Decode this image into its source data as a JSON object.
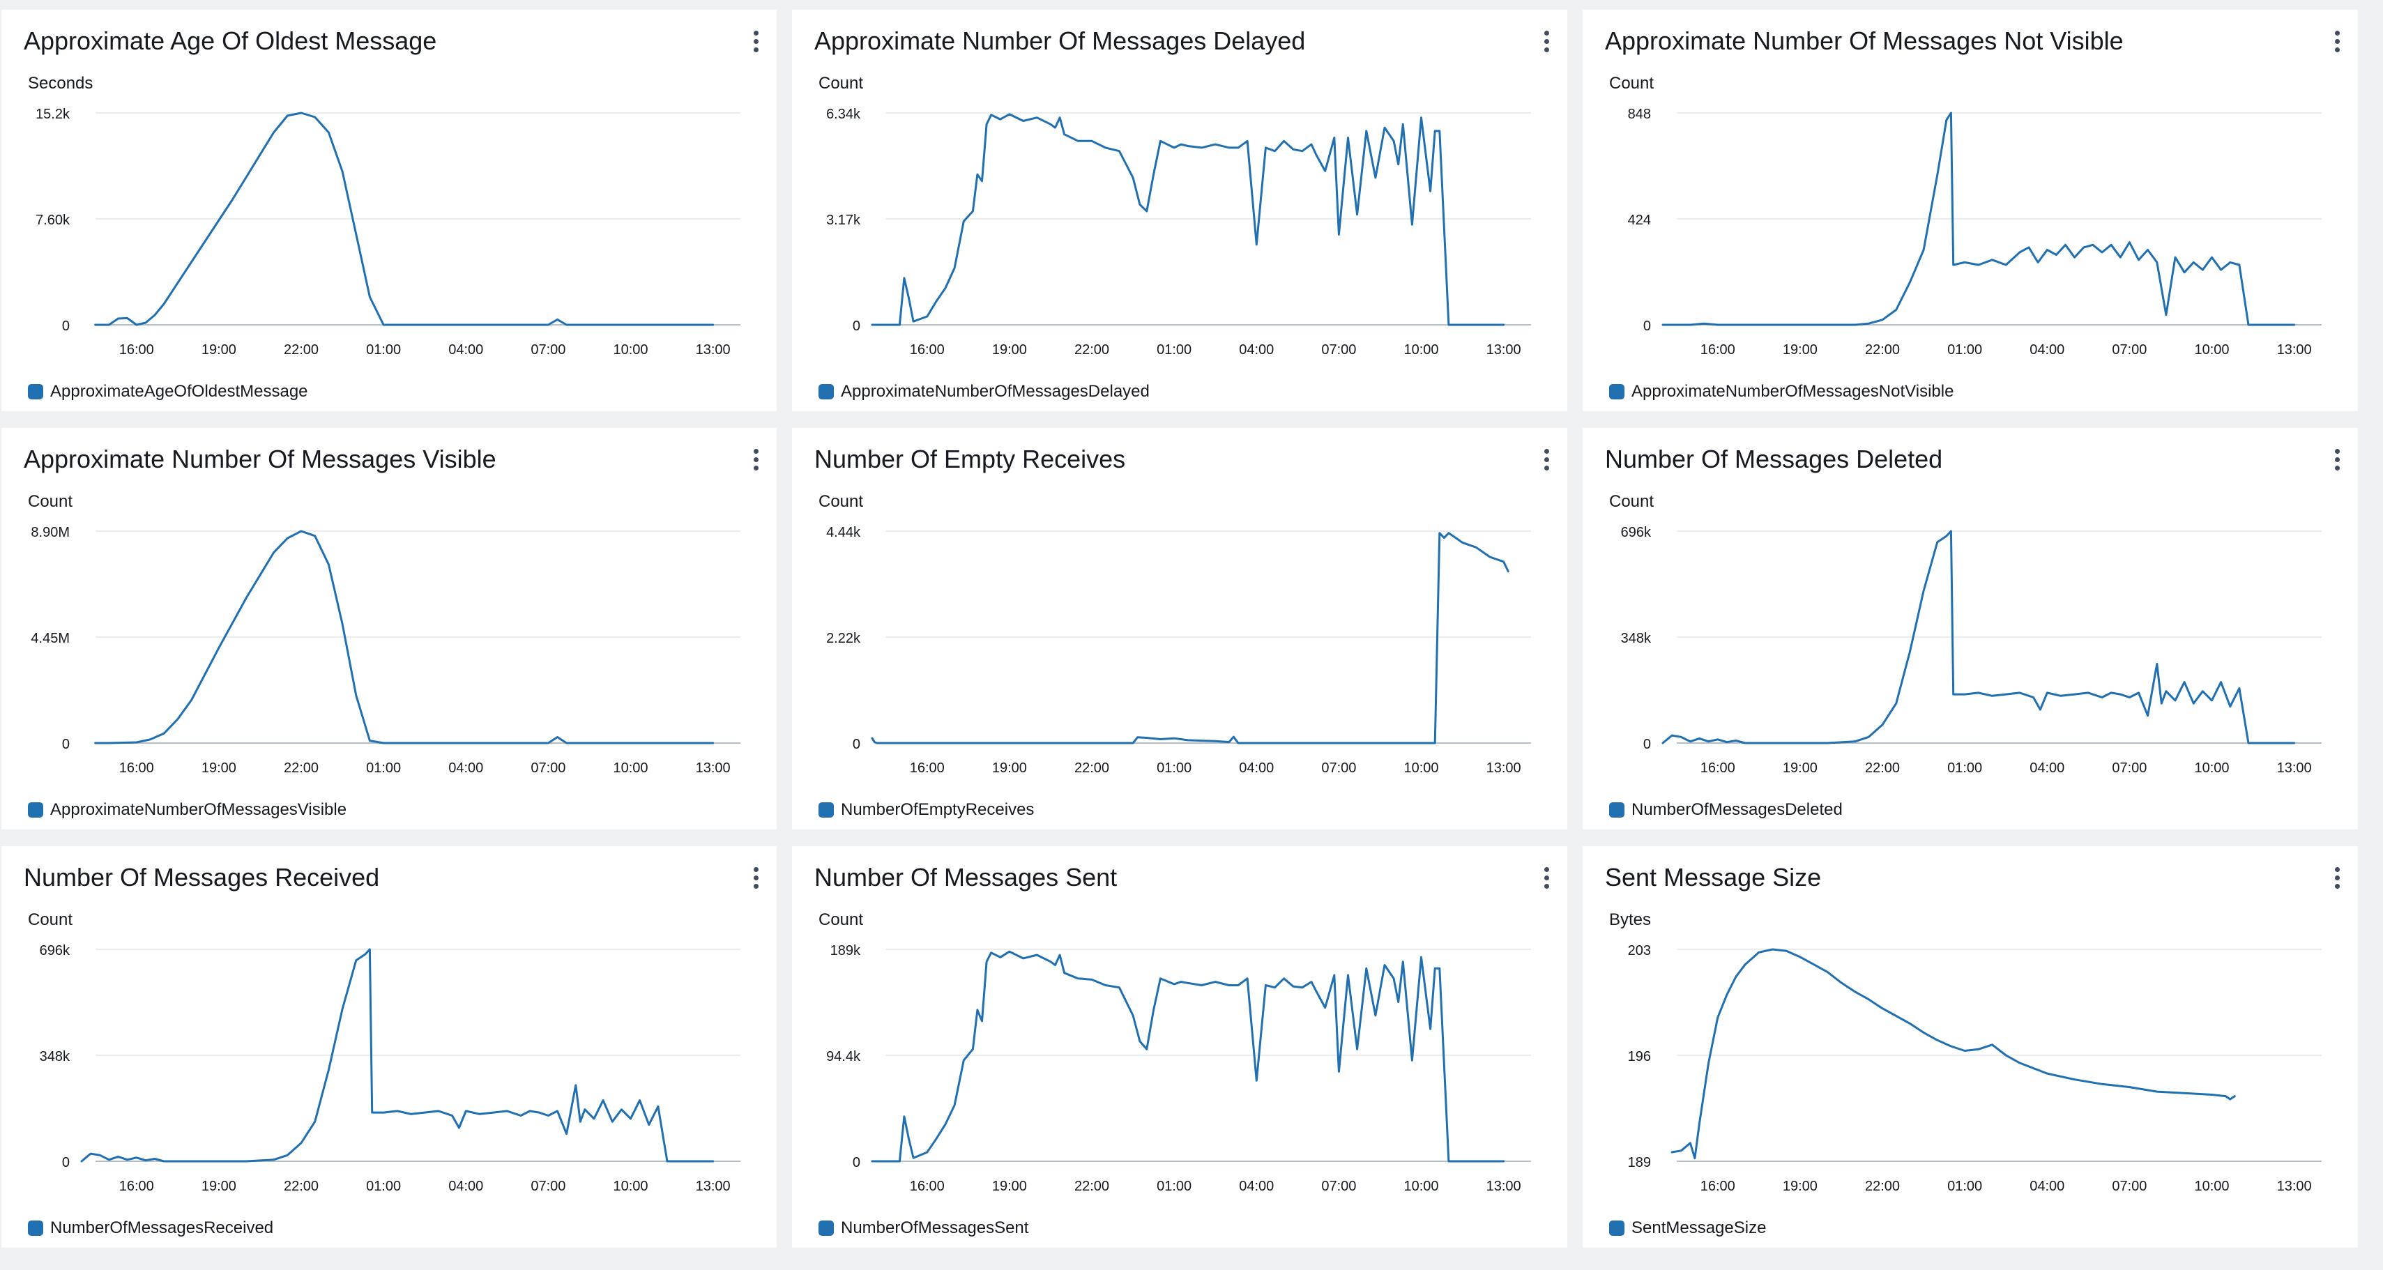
{
  "colors": {
    "series": "#1f6fb1",
    "grid": "#e3e5e8",
    "axis": "#b6bec9",
    "text": "#16191f"
  },
  "icons": {
    "menu": "more-vertical-icon"
  },
  "x_ticks": [
    "16:00",
    "19:00",
    "22:00",
    "01:00",
    "04:00",
    "07:00",
    "10:00",
    "13:00"
  ],
  "chart_data": [
    {
      "type": "line",
      "title": "Approximate Age Of Oldest Message",
      "ylabel": "Seconds",
      "yticks": [
        "15.2k",
        "7.60k",
        "0"
      ],
      "ylim": [
        0,
        15200
      ],
      "legend": "ApproximateAgeOfOldestMessage",
      "x": [
        "14:30",
        "15:00",
        "15:20",
        "15:40",
        "16:00",
        "16:20",
        "16:40",
        "17:00",
        "18:00",
        "19:00",
        "19:30",
        "20:00",
        "20:30",
        "21:00",
        "21:30",
        "22:00",
        "22:30",
        "23:00",
        "23:30",
        "00:00",
        "00:30",
        "01:00",
        "07:00",
        "07:20",
        "07:40",
        "08:00",
        "13:00"
      ],
      "y": [
        0,
        0,
        450,
        480,
        0,
        150,
        700,
        1500,
        4500,
        7500,
        9000,
        10600,
        12200,
        13800,
        15000,
        15200,
        14900,
        13800,
        11000,
        6500,
        2000,
        0,
        0,
        380,
        0,
        0,
        0
      ]
    },
    {
      "type": "line",
      "title": "Approximate Number Of Messages Delayed",
      "ylabel": "Count",
      "yticks": [
        "6.34k",
        "3.17k",
        "0"
      ],
      "ylim": [
        0,
        6340
      ],
      "legend": "ApproximateNumberOfMessagesDelayed",
      "x": [
        "14:00",
        "14:30",
        "15:00",
        "15:10",
        "15:20",
        "15:30",
        "16:00",
        "16:20",
        "16:40",
        "17:00",
        "17:20",
        "17:40",
        "17:50",
        "18:00",
        "18:10",
        "18:20",
        "18:40",
        "19:00",
        "19:30",
        "20:00",
        "20:30",
        "20:40",
        "20:50",
        "21:00",
        "21:30",
        "22:00",
        "22:30",
        "23:00",
        "23:30",
        "23:45",
        "00:00",
        "00:15",
        "00:30",
        "01:00",
        "01:15",
        "01:30",
        "02:00",
        "02:30",
        "03:00",
        "03:20",
        "03:40",
        "04:00",
        "04:20",
        "04:40",
        "05:00",
        "05:20",
        "05:40",
        "06:00",
        "06:10",
        "06:30",
        "06:50",
        "07:00",
        "07:20",
        "07:40",
        "08:00",
        "08:20",
        "08:40",
        "09:00",
        "09:10",
        "09:20",
        "09:40",
        "10:00",
        "10:20",
        "10:30",
        "10:40",
        "11:00",
        "13:00"
      ],
      "y": [
        0,
        0,
        0,
        1400,
        800,
        100,
        250,
        700,
        1100,
        1700,
        3100,
        3400,
        4500,
        4300,
        6000,
        6280,
        6150,
        6300,
        6100,
        6200,
        6000,
        5900,
        6200,
        5700,
        5500,
        5500,
        5300,
        5200,
        4400,
        3600,
        3400,
        4500,
        5500,
        5300,
        5400,
        5350,
        5300,
        5400,
        5300,
        5300,
        5500,
        2400,
        5300,
        5200,
        5500,
        5250,
        5200,
        5400,
        5100,
        4600,
        5600,
        2700,
        5600,
        3300,
        5800,
        4400,
        5900,
        5500,
        4800,
        6000,
        3000,
        6200,
        4000,
        5800,
        5800,
        0,
        0
      ]
    },
    {
      "type": "line",
      "title": "Approximate Number Of Messages Not Visible",
      "ylabel": "Count",
      "yticks": [
        "848",
        "424",
        "0"
      ],
      "ylim": [
        0,
        848
      ],
      "legend": "ApproximateNumberOfMessagesNotVisible",
      "x": [
        "14:00",
        "15:00",
        "15:30",
        "16:00",
        "18:00",
        "20:00",
        "21:00",
        "21:30",
        "22:00",
        "22:30",
        "23:00",
        "23:30",
        "00:00",
        "00:20",
        "00:30",
        "00:35",
        "01:00",
        "01:30",
        "02:00",
        "02:30",
        "03:00",
        "03:20",
        "03:40",
        "04:00",
        "04:20",
        "04:40",
        "05:00",
        "05:20",
        "05:40",
        "06:00",
        "06:20",
        "06:40",
        "07:00",
        "07:20",
        "07:40",
        "08:00",
        "08:20",
        "08:40",
        "09:00",
        "09:20",
        "09:40",
        "10:00",
        "10:20",
        "10:40",
        "11:00",
        "11:20",
        "11:40",
        "12:00",
        "13:00"
      ],
      "y": [
        0,
        0,
        5,
        0,
        0,
        0,
        0,
        5,
        20,
        60,
        170,
        300,
        600,
        820,
        848,
        240,
        250,
        240,
        260,
        240,
        290,
        310,
        250,
        300,
        280,
        320,
        270,
        310,
        320,
        290,
        320,
        270,
        330,
        260,
        300,
        250,
        40,
        270,
        210,
        250,
        220,
        270,
        220,
        250,
        240,
        0,
        0,
        0,
        0
      ]
    },
    {
      "type": "line",
      "title": "Approximate Number Of Messages Visible",
      "ylabel": "Count",
      "yticks": [
        "8.90M",
        "4.45M",
        "0"
      ],
      "ylim": [
        0,
        8900000
      ],
      "legend": "ApproximateNumberOfMessagesVisible",
      "x": [
        "14:30",
        "15:00",
        "16:00",
        "16:30",
        "17:00",
        "17:30",
        "18:00",
        "19:00",
        "20:00",
        "21:00",
        "21:30",
        "22:00",
        "22:30",
        "23:00",
        "23:30",
        "00:00",
        "00:30",
        "01:00",
        "07:00",
        "07:20",
        "07:40",
        "08:00",
        "13:00"
      ],
      "y": [
        0,
        0,
        30000,
        150000,
        400000,
        1000000,
        1800000,
        4000000,
        6100000,
        8000000,
        8600000,
        8900000,
        8700000,
        7500000,
        5000000,
        2000000,
        100000,
        0,
        0,
        250000,
        0,
        0,
        0
      ]
    },
    {
      "type": "line",
      "title": "Number Of Empty Receives",
      "ylabel": "Count",
      "yticks": [
        "4.44k",
        "2.22k",
        "0"
      ],
      "ylim": [
        0,
        4440
      ],
      "legend": "NumberOfEmptyReceives",
      "x": [
        "14:00",
        "14:05",
        "14:10",
        "15:00",
        "16:00",
        "19:00",
        "22:00",
        "23:30",
        "23:40",
        "00:00",
        "00:30",
        "01:00",
        "01:30",
        "02:00",
        "02:30",
        "03:00",
        "03:10",
        "03:20",
        "03:30",
        "04:00",
        "07:00",
        "09:30",
        "10:30",
        "10:40",
        "10:50",
        "11:00",
        "11:30",
        "12:00",
        "12:30",
        "13:00",
        "13:10"
      ],
      "y": [
        100,
        20,
        0,
        0,
        0,
        0,
        0,
        0,
        120,
        110,
        80,
        100,
        60,
        50,
        40,
        20,
        130,
        0,
        0,
        0,
        0,
        0,
        0,
        4400,
        4300,
        4400,
        4200,
        4100,
        3900,
        3800,
        3600
      ]
    },
    {
      "type": "line",
      "title": "Number Of Messages Deleted",
      "ylabel": "Count",
      "yticks": [
        "696k",
        "348k",
        "0"
      ],
      "ylim": [
        0,
        696000
      ],
      "legend": "NumberOfMessagesDeleted",
      "x": [
        "14:00",
        "14:20",
        "14:40",
        "15:00",
        "15:20",
        "15:40",
        "16:00",
        "16:20",
        "16:40",
        "17:00",
        "18:00",
        "19:00",
        "20:00",
        "21:00",
        "21:30",
        "22:00",
        "22:30",
        "23:00",
        "23:30",
        "00:00",
        "00:20",
        "00:30",
        "00:35",
        "01:00",
        "01:30",
        "02:00",
        "02:30",
        "03:00",
        "03:30",
        "03:45",
        "04:00",
        "04:30",
        "05:00",
        "05:30",
        "06:00",
        "06:20",
        "06:40",
        "07:00",
        "07:20",
        "07:40",
        "08:00",
        "08:10",
        "08:20",
        "08:40",
        "09:00",
        "09:20",
        "09:40",
        "10:00",
        "10:20",
        "10:40",
        "11:00",
        "11:20",
        "11:40",
        "12:00",
        "13:00"
      ],
      "y": [
        0,
        25000,
        20000,
        5000,
        15000,
        5000,
        12000,
        3000,
        8000,
        0,
        0,
        0,
        0,
        5000,
        20000,
        60000,
        130000,
        300000,
        500000,
        660000,
        680000,
        696000,
        160000,
        160000,
        165000,
        155000,
        160000,
        165000,
        150000,
        110000,
        165000,
        155000,
        160000,
        165000,
        150000,
        165000,
        160000,
        150000,
        165000,
        90000,
        260000,
        130000,
        170000,
        140000,
        200000,
        130000,
        170000,
        140000,
        200000,
        120000,
        180000,
        0,
        0,
        0,
        0
      ]
    },
    {
      "type": "line",
      "title": "Number Of Messages Received",
      "ylabel": "Count",
      "yticks": [
        "696k",
        "348k",
        "0"
      ],
      "ylim": [
        0,
        696000
      ],
      "legend": "NumberOfMessagesReceived",
      "x": [
        "14:00",
        "14:20",
        "14:40",
        "15:00",
        "15:20",
        "15:40",
        "16:00",
        "16:20",
        "16:40",
        "17:00",
        "18:00",
        "19:00",
        "20:00",
        "21:00",
        "21:30",
        "22:00",
        "22:30",
        "23:00",
        "23:30",
        "00:00",
        "00:20",
        "00:30",
        "00:35",
        "01:00",
        "01:30",
        "02:00",
        "02:30",
        "03:00",
        "03:30",
        "03:45",
        "04:00",
        "04:30",
        "05:00",
        "05:30",
        "06:00",
        "06:20",
        "06:40",
        "07:00",
        "07:20",
        "07:40",
        "08:00",
        "08:10",
        "08:20",
        "08:40",
        "09:00",
        "09:20",
        "09:40",
        "10:00",
        "10:20",
        "10:40",
        "11:00",
        "11:20",
        "11:40",
        "12:00",
        "13:00"
      ],
      "y": [
        0,
        25000,
        20000,
        5000,
        15000,
        5000,
        12000,
        3000,
        8000,
        0,
        0,
        0,
        0,
        5000,
        20000,
        60000,
        130000,
        300000,
        500000,
        660000,
        680000,
        696000,
        160000,
        160000,
        165000,
        155000,
        160000,
        165000,
        150000,
        110000,
        165000,
        155000,
        160000,
        165000,
        150000,
        165000,
        160000,
        150000,
        165000,
        90000,
        250000,
        130000,
        170000,
        140000,
        200000,
        130000,
        170000,
        140000,
        200000,
        120000,
        180000,
        0,
        0,
        0,
        0
      ]
    },
    {
      "type": "line",
      "title": "Number Of Messages Sent",
      "ylabel": "Count",
      "yticks": [
        "189k",
        "94.4k",
        "0"
      ],
      "ylim": [
        0,
        189000
      ],
      "legend": "NumberOfMessagesSent",
      "x": [
        "14:00",
        "14:30",
        "15:00",
        "15:10",
        "15:20",
        "15:30",
        "16:00",
        "16:20",
        "16:40",
        "17:00",
        "17:20",
        "17:40",
        "17:50",
        "18:00",
        "18:10",
        "18:20",
        "18:40",
        "19:00",
        "19:30",
        "20:00",
        "20:30",
        "20:40",
        "20:50",
        "21:00",
        "21:30",
        "22:00",
        "22:30",
        "23:00",
        "23:30",
        "23:45",
        "00:00",
        "00:15",
        "00:30",
        "01:00",
        "01:15",
        "01:30",
        "02:00",
        "02:30",
        "03:00",
        "03:20",
        "03:40",
        "04:00",
        "04:20",
        "04:40",
        "05:00",
        "05:20",
        "05:40",
        "06:00",
        "06:10",
        "06:30",
        "06:50",
        "07:00",
        "07:20",
        "07:40",
        "08:00",
        "08:20",
        "08:40",
        "09:00",
        "09:10",
        "09:20",
        "09:40",
        "10:00",
        "10:20",
        "10:30",
        "10:40",
        "11:00",
        "13:00"
      ],
      "y": [
        0,
        0,
        0,
        40000,
        20000,
        3000,
        8000,
        20000,
        33000,
        50000,
        90000,
        100000,
        135000,
        125000,
        178000,
        186000,
        182000,
        187000,
        181000,
        184000,
        178000,
        175000,
        184000,
        168000,
        163000,
        162000,
        157000,
        155000,
        130000,
        107000,
        100000,
        135000,
        163000,
        158000,
        160000,
        159000,
        157000,
        160000,
        157000,
        157000,
        163000,
        72000,
        157000,
        155000,
        163000,
        156000,
        155000,
        160000,
        152000,
        137000,
        166000,
        80000,
        166000,
        100000,
        172000,
        130000,
        175000,
        163000,
        142000,
        178000,
        90000,
        182000,
        118000,
        172000,
        172000,
        0,
        0
      ]
    },
    {
      "type": "line",
      "title": "Sent Message Size",
      "ylabel": "Bytes",
      "yticks": [
        "203",
        "196",
        "189"
      ],
      "ylim": [
        189,
        203
      ],
      "legend": "SentMessageSize",
      "x": [
        "14:20",
        "14:40",
        "15:00",
        "15:10",
        "15:20",
        "15:40",
        "16:00",
        "16:20",
        "16:40",
        "17:00",
        "17:30",
        "18:00",
        "18:30",
        "19:00",
        "19:30",
        "20:00",
        "20:30",
        "21:00",
        "21:30",
        "22:00",
        "22:30",
        "23:00",
        "23:30",
        "00:00",
        "00:30",
        "01:00",
        "01:30",
        "02:00",
        "02:30",
        "03:00",
        "04:00",
        "05:00",
        "06:00",
        "07:00",
        "08:00",
        "09:00",
        "10:00",
        "10:30",
        "10:40",
        "10:50"
      ],
      "y": [
        189.6,
        189.7,
        190.2,
        189.2,
        191.5,
        195.5,
        198.5,
        200.0,
        201.2,
        202.0,
        202.8,
        203.0,
        202.9,
        202.5,
        202.0,
        201.5,
        200.8,
        200.2,
        199.7,
        199.1,
        198.6,
        198.1,
        197.5,
        197.0,
        196.6,
        196.3,
        196.4,
        196.7,
        196.0,
        195.5,
        194.8,
        194.4,
        194.1,
        193.9,
        193.6,
        193.5,
        193.4,
        193.3,
        193.1,
        193.3
      ]
    }
  ]
}
